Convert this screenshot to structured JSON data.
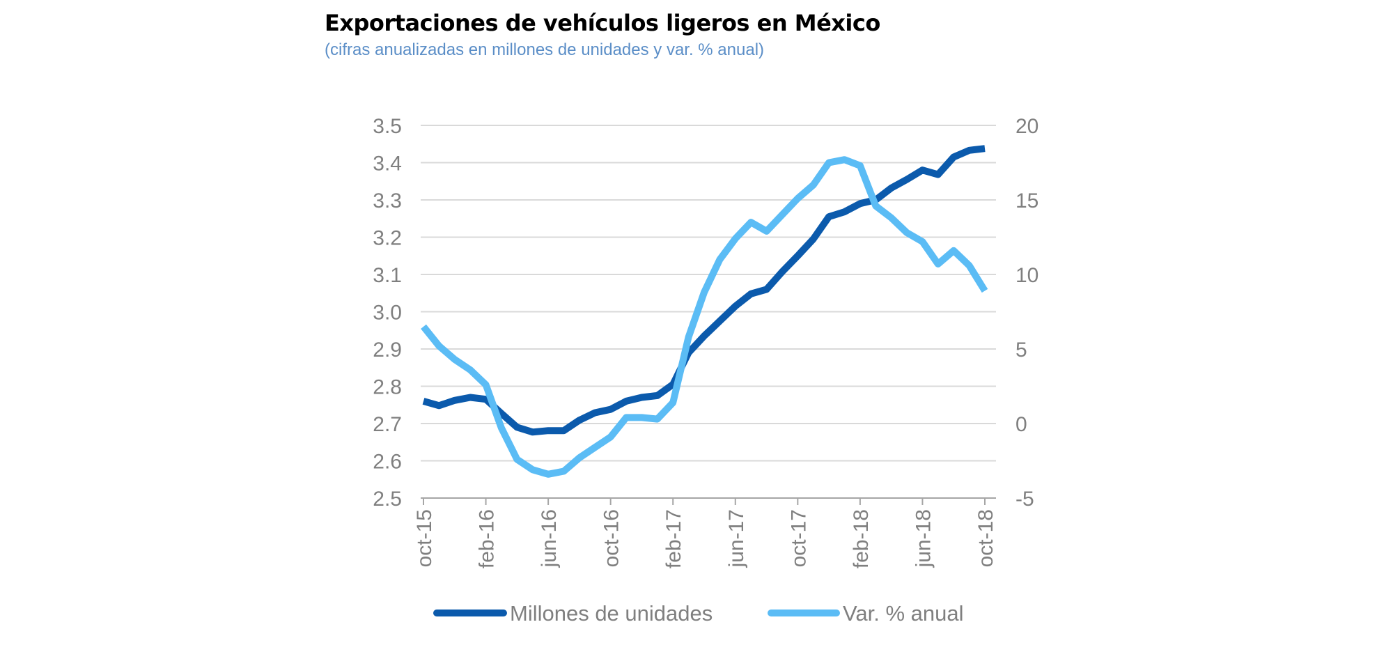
{
  "chart_data": {
    "type": "line",
    "title": "Exportaciones de vehículos ligeros en México",
    "subtitle": "(cifras anualizadas en millones de unidades y var. % anual)",
    "x": [
      "oct-15",
      "nov-15",
      "dic-15",
      "ene-16",
      "feb-16",
      "mar-16",
      "abr-16",
      "may-16",
      "jun-16",
      "jul-16",
      "ago-16",
      "sep-16",
      "oct-16",
      "nov-16",
      "dic-16",
      "ene-17",
      "feb-17",
      "mar-17",
      "abr-17",
      "may-17",
      "jun-17",
      "jul-17",
      "ago-17",
      "sep-17",
      "oct-17",
      "nov-17",
      "dic-17",
      "ene-18",
      "feb-18",
      "mar-18",
      "abr-18",
      "may-18",
      "jun-18",
      "jul-18",
      "ago-18",
      "sep-18",
      "oct-18"
    ],
    "x_tick_labels": [
      "oct-15",
      "feb-16",
      "jun-16",
      "oct-16",
      "feb-17",
      "jun-17",
      "oct-17",
      "feb-18",
      "jun-18",
      "oct-18"
    ],
    "y_left": {
      "range": [
        2.5,
        3.5
      ],
      "ticks": [
        "2.5",
        "2.6",
        "2.7",
        "2.8",
        "2.9",
        "3.0",
        "3.1",
        "3.2",
        "3.3",
        "3.4",
        "3.5"
      ]
    },
    "y_right": {
      "range": [
        -5,
        20
      ],
      "ticks": [
        "-5",
        "0",
        "5",
        "10",
        "15",
        "20"
      ]
    },
    "grid": true,
    "legend_position": "bottom",
    "series": [
      {
        "name": "Millones de unidades",
        "axis": "left",
        "color": "#0b5aac",
        "values": [
          2.76,
          2.748,
          2.762,
          2.77,
          2.765,
          2.727,
          2.69,
          2.677,
          2.681,
          2.681,
          2.709,
          2.729,
          2.738,
          2.76,
          2.77,
          2.775,
          2.805,
          2.89,
          2.935,
          2.975,
          3.015,
          3.048,
          3.06,
          3.107,
          3.15,
          3.195,
          3.255,
          3.268,
          3.29,
          3.3,
          3.332,
          3.355,
          3.38,
          3.368,
          3.415,
          3.433,
          3.438
        ]
      },
      {
        "name": "Var. % anual",
        "axis": "right",
        "color": "#5bbcf5",
        "values": [
          6.5,
          5.2,
          4.3,
          3.6,
          2.6,
          -0.3,
          -2.4,
          -3.1,
          -3.4,
          -3.2,
          -2.3,
          -1.6,
          -0.9,
          0.4,
          0.4,
          0.3,
          1.4,
          5.8,
          8.8,
          11.0,
          12.4,
          13.5,
          12.9,
          14.0,
          15.1,
          16.0,
          17.5,
          17.7,
          17.3,
          14.6,
          13.8,
          12.8,
          12.2,
          10.7,
          11.6,
          10.6,
          8.9
        ]
      }
    ]
  }
}
